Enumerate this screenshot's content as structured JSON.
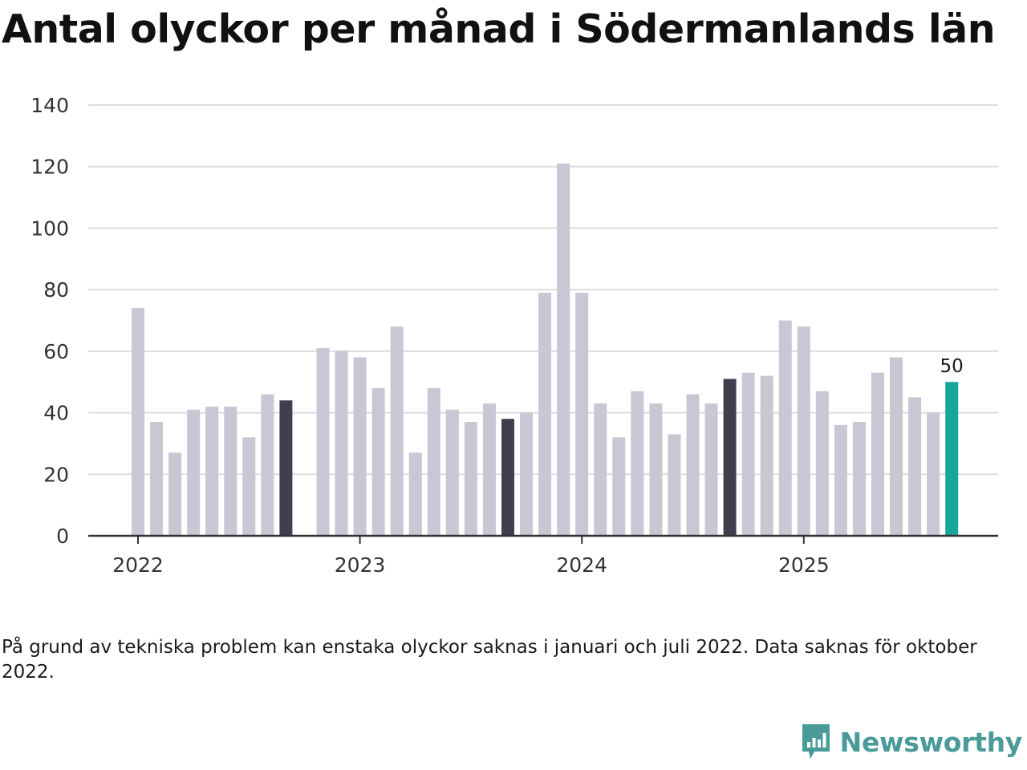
{
  "title": "Antal olyckor per månad i Södermanlands län",
  "note": "På grund av tekniska problem kan enstaka olyckor saknas i januari och juli 2022. Data saknas för oktober 2022.",
  "logo": {
    "name": "Newsworthy",
    "icon": "newsworthy-logo-icon"
  },
  "colors": {
    "bar": "#c8c7d3",
    "highlight": "#3f3f4f",
    "current": "#17a69b",
    "grid": "#dddddd",
    "axis": "#333333"
  },
  "chart_data": {
    "type": "bar",
    "ylim": [
      0,
      140
    ],
    "yticks": [
      0,
      20,
      40,
      60,
      80,
      100,
      120,
      140
    ],
    "xlabels": [
      {
        "label": "2022",
        "index": 0
      },
      {
        "label": "2023",
        "index": 12
      },
      {
        "label": "2024",
        "index": 24
      },
      {
        "label": "2025",
        "index": 36
      }
    ],
    "bars": [
      {
        "month": "2022-01",
        "value": 74,
        "kind": "normal"
      },
      {
        "month": "2022-02",
        "value": 37,
        "kind": "normal"
      },
      {
        "month": "2022-03",
        "value": 27,
        "kind": "normal"
      },
      {
        "month": "2022-04",
        "value": 41,
        "kind": "normal"
      },
      {
        "month": "2022-05",
        "value": 42,
        "kind": "normal"
      },
      {
        "month": "2022-06",
        "value": 42,
        "kind": "normal"
      },
      {
        "month": "2022-07",
        "value": 32,
        "kind": "normal"
      },
      {
        "month": "2022-08",
        "value": 46,
        "kind": "normal"
      },
      {
        "month": "2022-09",
        "value": 44,
        "kind": "highlight"
      },
      {
        "month": "2022-10",
        "value": null,
        "kind": "missing"
      },
      {
        "month": "2022-11",
        "value": 61,
        "kind": "normal"
      },
      {
        "month": "2022-12",
        "value": 60,
        "kind": "normal"
      },
      {
        "month": "2023-01",
        "value": 58,
        "kind": "normal"
      },
      {
        "month": "2023-02",
        "value": 48,
        "kind": "normal"
      },
      {
        "month": "2023-03",
        "value": 68,
        "kind": "normal"
      },
      {
        "month": "2023-04",
        "value": 27,
        "kind": "normal"
      },
      {
        "month": "2023-05",
        "value": 48,
        "kind": "normal"
      },
      {
        "month": "2023-06",
        "value": 41,
        "kind": "normal"
      },
      {
        "month": "2023-07",
        "value": 37,
        "kind": "normal"
      },
      {
        "month": "2023-08",
        "value": 43,
        "kind": "normal"
      },
      {
        "month": "2023-09",
        "value": 38,
        "kind": "highlight"
      },
      {
        "month": "2023-10",
        "value": 40,
        "kind": "normal"
      },
      {
        "month": "2023-11",
        "value": 79,
        "kind": "normal"
      },
      {
        "month": "2023-12",
        "value": 121,
        "kind": "normal"
      },
      {
        "month": "2024-01",
        "value": 79,
        "kind": "normal"
      },
      {
        "month": "2024-02",
        "value": 43,
        "kind": "normal"
      },
      {
        "month": "2024-03",
        "value": 32,
        "kind": "normal"
      },
      {
        "month": "2024-04",
        "value": 47,
        "kind": "normal"
      },
      {
        "month": "2024-05",
        "value": 43,
        "kind": "normal"
      },
      {
        "month": "2024-06",
        "value": 33,
        "kind": "normal"
      },
      {
        "month": "2024-07",
        "value": 46,
        "kind": "normal"
      },
      {
        "month": "2024-08",
        "value": 43,
        "kind": "normal"
      },
      {
        "month": "2024-09",
        "value": 51,
        "kind": "highlight"
      },
      {
        "month": "2024-10",
        "value": 53,
        "kind": "normal"
      },
      {
        "month": "2024-11",
        "value": 52,
        "kind": "normal"
      },
      {
        "month": "2024-12",
        "value": 70,
        "kind": "normal"
      },
      {
        "month": "2025-01",
        "value": 68,
        "kind": "normal"
      },
      {
        "month": "2025-02",
        "value": 47,
        "kind": "normal"
      },
      {
        "month": "2025-03",
        "value": 36,
        "kind": "normal"
      },
      {
        "month": "2025-04",
        "value": 37,
        "kind": "normal"
      },
      {
        "month": "2025-05",
        "value": 53,
        "kind": "normal"
      },
      {
        "month": "2025-06",
        "value": 58,
        "kind": "normal"
      },
      {
        "month": "2025-07",
        "value": 45,
        "kind": "normal"
      },
      {
        "month": "2025-08",
        "value": 40,
        "kind": "normal"
      },
      {
        "month": "2025-09",
        "value": 50,
        "kind": "current"
      }
    ],
    "last_value_label": "50"
  }
}
